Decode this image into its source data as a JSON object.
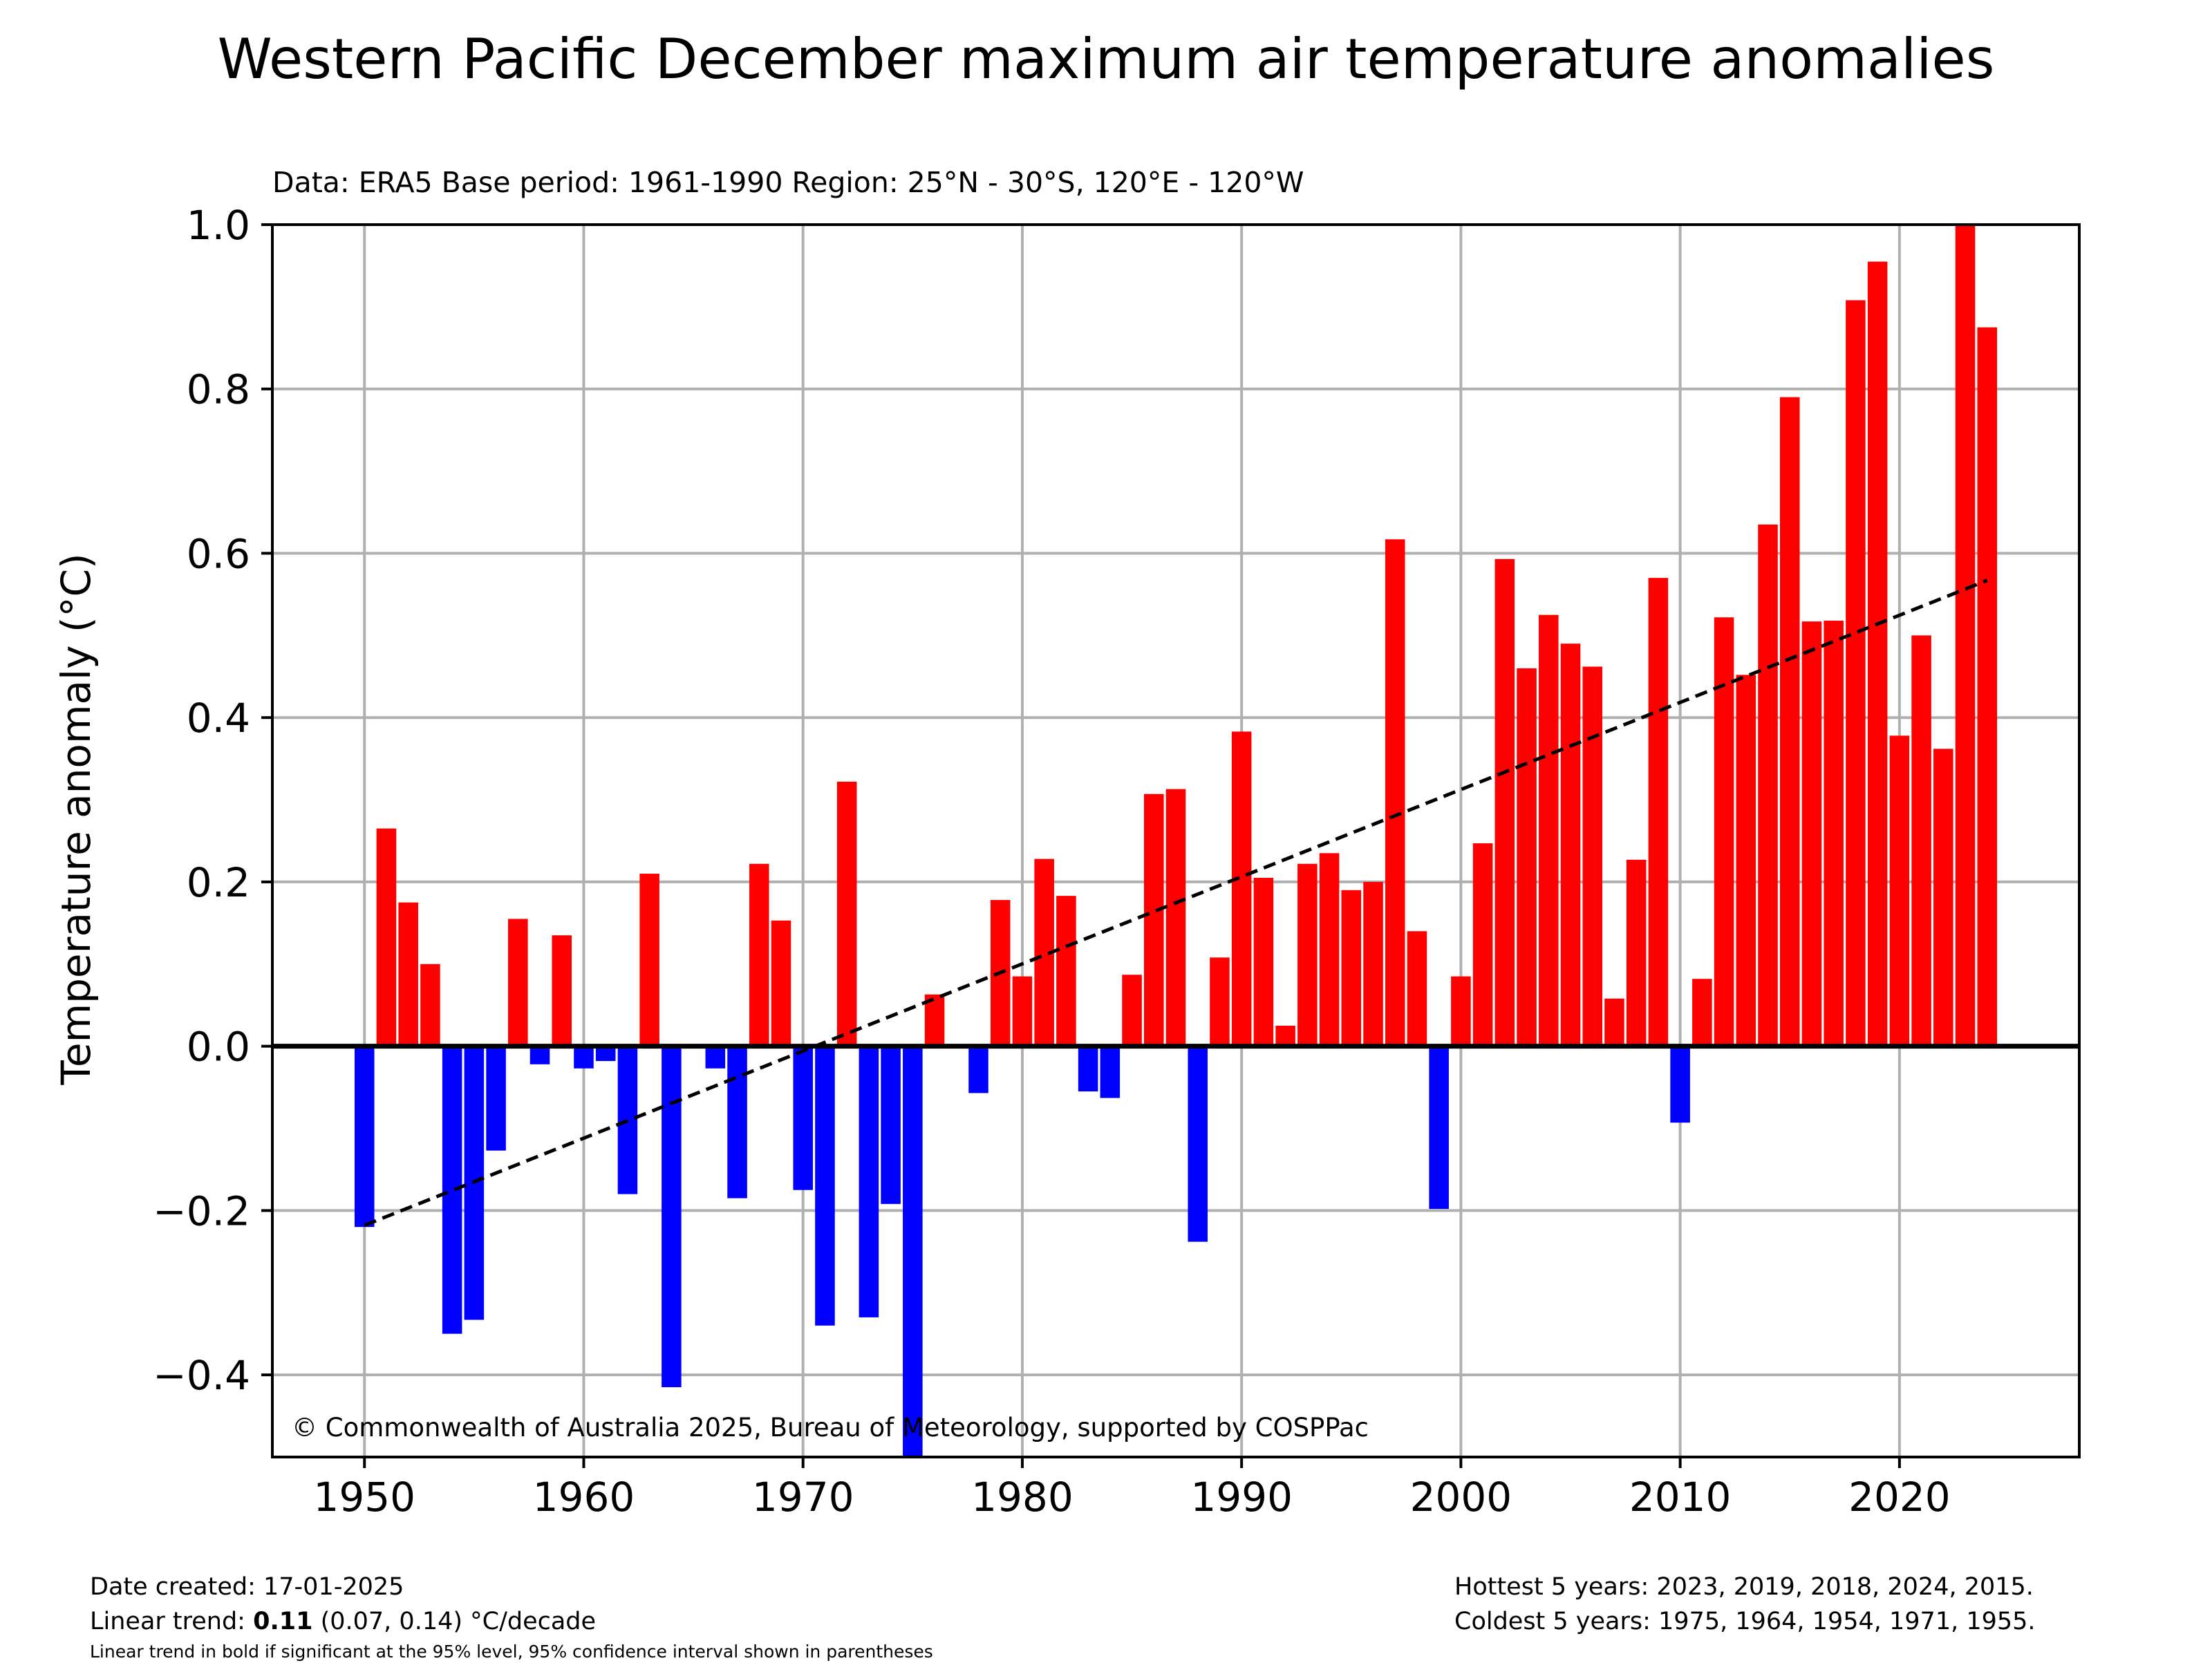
{
  "title": "Western Pacific December maximum air temperature anomalies",
  "subtitle": "Data: ERA5  Base period: 1961-1990  Region: 25°N - 30°S, 120°E - 120°W",
  "copyright": "© Commonwealth of Australia 2025, Bureau of Meteorology, supported by COSPPac",
  "footer": {
    "date_created": "Date created: 17-01-2025",
    "trend_prefix": "Linear trend: ",
    "trend_value": "0.11",
    "trend_suffix": " (0.07, 0.14) °C/decade",
    "trend_note": "Linear trend in bold if significant at the 95% level, 95% confidence interval shown in parentheses",
    "hottest": "Hottest 5 years: 2023, 2019, 2018, 2024, 2015.",
    "coldest": "Coldest 5 years: 1975, 1964, 1954, 1971, 1955."
  },
  "chart_data": {
    "type": "bar",
    "ylabel": "Temperature anomaly (°C)",
    "xlim": [
      1945.8,
      2028.2
    ],
    "ylim": [
      -0.5,
      1.0
    ],
    "x_ticks": [
      1950,
      1960,
      1970,
      1980,
      1990,
      2000,
      2010,
      2020
    ],
    "y_ticks": [
      -0.4,
      -0.2,
      0.0,
      0.2,
      0.4,
      0.6,
      0.8,
      1.0
    ],
    "y_tick_labels": [
      "−0.4",
      "−0.2",
      "0.0",
      "0.2",
      "0.4",
      "0.6",
      "0.8",
      "1.0"
    ],
    "grid": true,
    "colors": {
      "positive": "#ff0000",
      "negative": "#0000ff",
      "trend": "#000000",
      "grid": "#b0b0b0"
    },
    "years": [
      1950,
      1951,
      1952,
      1953,
      1954,
      1955,
      1956,
      1957,
      1958,
      1959,
      1960,
      1961,
      1962,
      1963,
      1964,
      1965,
      1966,
      1967,
      1968,
      1969,
      1970,
      1971,
      1972,
      1973,
      1974,
      1975,
      1976,
      1977,
      1978,
      1979,
      1980,
      1981,
      1982,
      1983,
      1984,
      1985,
      1986,
      1987,
      1988,
      1989,
      1990,
      1991,
      1992,
      1993,
      1994,
      1995,
      1996,
      1997,
      1998,
      1999,
      2000,
      2001,
      2002,
      2003,
      2004,
      2005,
      2006,
      2007,
      2008,
      2009,
      2010,
      2011,
      2012,
      2013,
      2014,
      2015,
      2016,
      2017,
      2018,
      2019,
      2020,
      2021,
      2022,
      2023,
      2024
    ],
    "values": [
      -0.22,
      0.265,
      0.175,
      0.1,
      -0.35,
      -0.333,
      -0.127,
      0.155,
      -0.022,
      0.135,
      -0.027,
      -0.018,
      -0.18,
      0.21,
      -0.415,
      0.0,
      -0.027,
      -0.185,
      0.222,
      0.153,
      -0.175,
      -0.34,
      0.322,
      -0.33,
      -0.192,
      -0.5,
      0.063,
      0.0,
      -0.057,
      0.178,
      0.085,
      0.228,
      0.183,
      -0.055,
      -0.063,
      0.087,
      0.307,
      0.313,
      -0.238,
      0.108,
      0.383,
      0.205,
      0.025,
      0.222,
      0.235,
      0.19,
      0.2,
      0.617,
      0.14,
      -0.198,
      0.085,
      0.247,
      0.593,
      0.46,
      0.525,
      0.49,
      0.462,
      0.058,
      0.227,
      0.57,
      -0.093,
      0.082,
      0.522,
      0.452,
      0.635,
      0.79,
      0.517,
      0.518,
      0.908,
      0.955,
      0.378,
      0.5,
      0.362,
      1.0,
      0.875
    ],
    "trend": {
      "label": "Linear trend",
      "start": [
        1950,
        -0.218
      ],
      "end": [
        2024,
        0.567
      ]
    }
  }
}
